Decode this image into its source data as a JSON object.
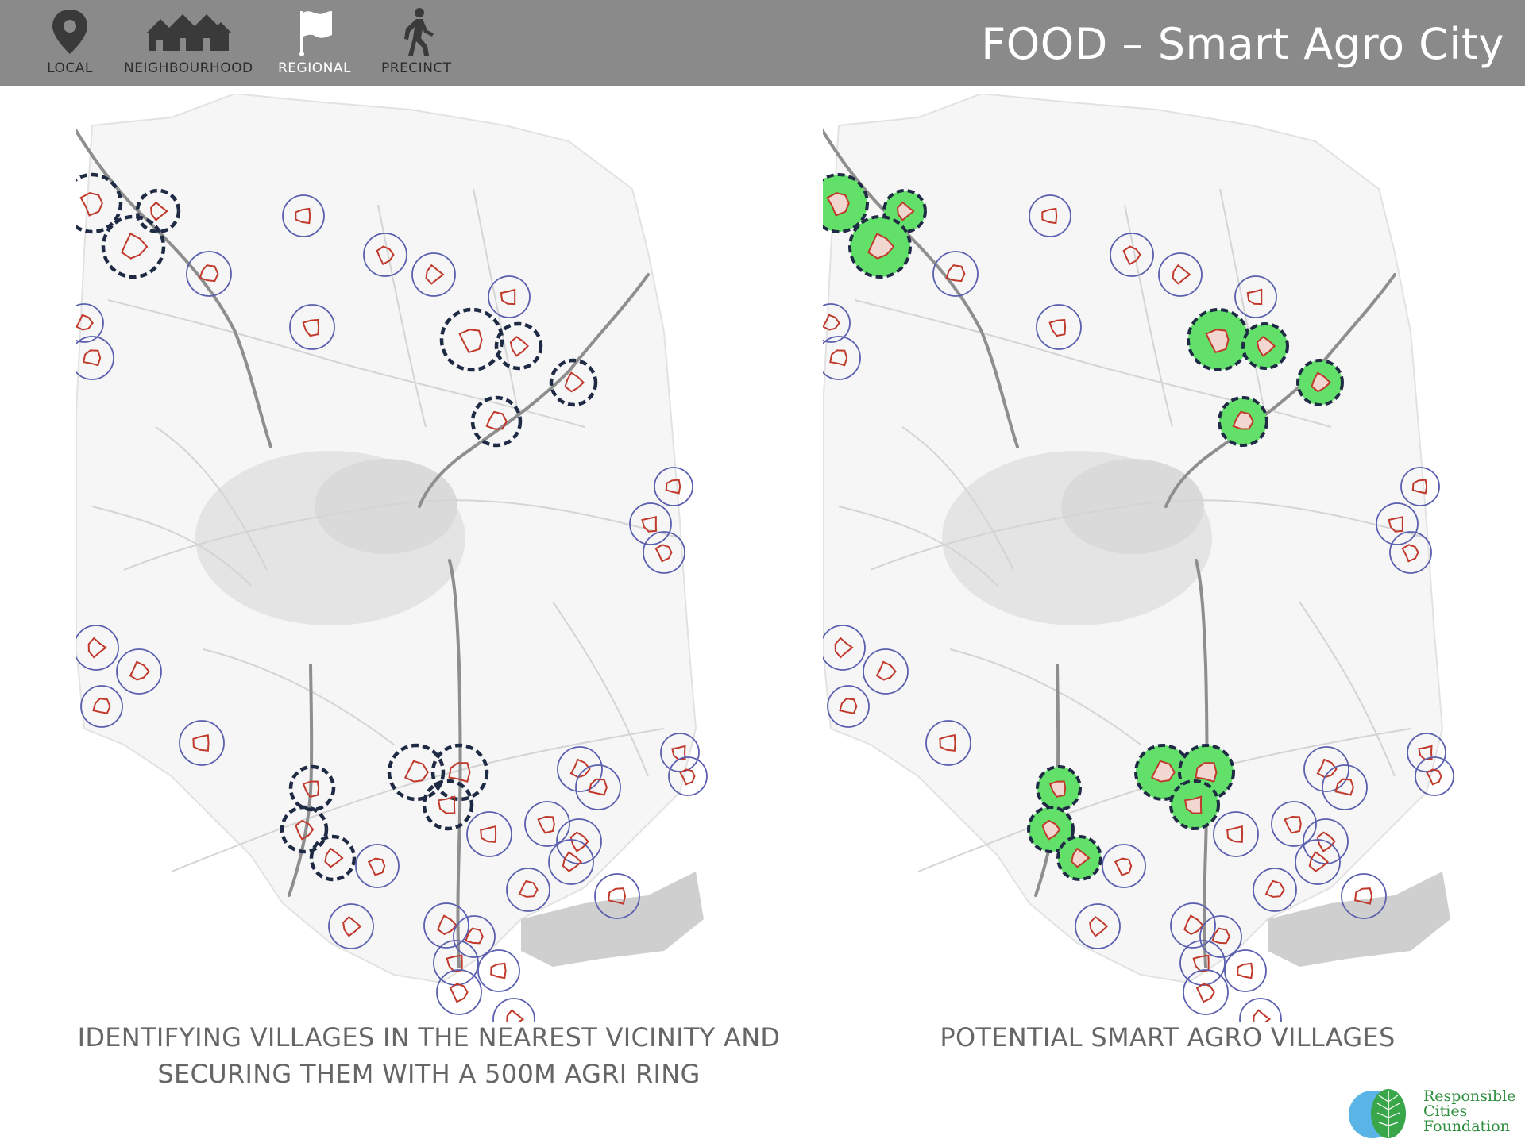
{
  "header": {
    "title": "FOOD – Smart Agro City",
    "scale_levels": [
      {
        "label": "LOCAL",
        "icon": "map-pin-icon",
        "active": false
      },
      {
        "label": "NEIGHBOURHOOD",
        "icon": "houses-icon",
        "active": false
      },
      {
        "label": "REGIONAL",
        "icon": "flag-icon",
        "active": true
      },
      {
        "label": "PRECINCT",
        "icon": "walking-person-icon",
        "active": false
      }
    ],
    "colors": {
      "bar": "#8a8a8a",
      "active_label": "#ffffff",
      "inactive_label": "#2c2c2c"
    }
  },
  "maps": {
    "left": {
      "caption_line1": "IDENTIFYING VILLAGES IN THE NEAREST VICINITY AND",
      "caption_line2": "SECURING THEM WITH A 500M AGRI RING"
    },
    "right": {
      "caption": "POTENTIAL SMART AGRO VILLAGES"
    },
    "colors": {
      "ring": "#5a5fae",
      "selected_ring": "#1f2a44",
      "village_boundary": "#c0392b",
      "highway": "#8e8e8e",
      "smart_village_fill": "#63e06a"
    }
  },
  "logo": {
    "line1": "Responsible",
    "line2": "Cities",
    "line3": "Foundation",
    "colors": {
      "leaf": "#3aa64a",
      "circle": "#5ab4e6",
      "text": "#2e8f3e"
    }
  }
}
